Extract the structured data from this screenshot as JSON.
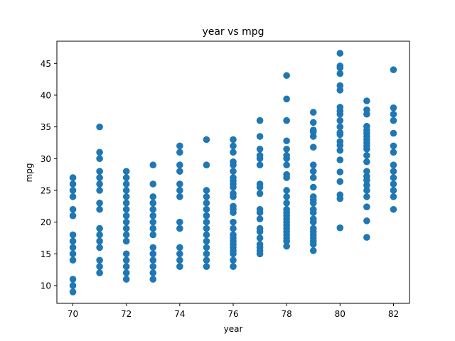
{
  "chart_data": {
    "type": "scatter",
    "title": "year vs mpg",
    "xlabel": "year",
    "ylabel": "mpg",
    "xlim": [
      69.4,
      82.6
    ],
    "ylim": [
      7.2,
      48.5
    ],
    "xticks": [
      70,
      72,
      74,
      76,
      78,
      80,
      82
    ],
    "yticks": [
      10,
      15,
      20,
      25,
      30,
      35,
      40,
      45
    ],
    "grid": false,
    "point_color": "#1f77b4",
    "points": [
      {
        "x": 70,
        "y": 9
      },
      {
        "x": 70,
        "y": 10
      },
      {
        "x": 70,
        "y": 11
      },
      {
        "x": 70,
        "y": 14
      },
      {
        "x": 70,
        "y": 15
      },
      {
        "x": 70,
        "y": 16
      },
      {
        "x": 70,
        "y": 17
      },
      {
        "x": 70,
        "y": 18
      },
      {
        "x": 70,
        "y": 21
      },
      {
        "x": 70,
        "y": 22
      },
      {
        "x": 70,
        "y": 24
      },
      {
        "x": 70,
        "y": 25
      },
      {
        "x": 70,
        "y": 26
      },
      {
        "x": 70,
        "y": 27
      },
      {
        "x": 71,
        "y": 12
      },
      {
        "x": 71,
        "y": 13
      },
      {
        "x": 71,
        "y": 14
      },
      {
        "x": 71,
        "y": 16
      },
      {
        "x": 71,
        "y": 17
      },
      {
        "x": 71,
        "y": 18
      },
      {
        "x": 71,
        "y": 19
      },
      {
        "x": 71,
        "y": 22
      },
      {
        "x": 71,
        "y": 23
      },
      {
        "x": 71,
        "y": 25
      },
      {
        "x": 71,
        "y": 26
      },
      {
        "x": 71,
        "y": 27
      },
      {
        "x": 71,
        "y": 28
      },
      {
        "x": 71,
        "y": 30
      },
      {
        "x": 71,
        "y": 31
      },
      {
        "x": 71,
        "y": 35
      },
      {
        "x": 72,
        "y": 11
      },
      {
        "x": 72,
        "y": 12
      },
      {
        "x": 72,
        "y": 13
      },
      {
        "x": 72,
        "y": 14
      },
      {
        "x": 72,
        "y": 15
      },
      {
        "x": 72,
        "y": 17
      },
      {
        "x": 72,
        "y": 18
      },
      {
        "x": 72,
        "y": 19
      },
      {
        "x": 72,
        "y": 20
      },
      {
        "x": 72,
        "y": 21
      },
      {
        "x": 72,
        "y": 22
      },
      {
        "x": 72,
        "y": 23
      },
      {
        "x": 72,
        "y": 24
      },
      {
        "x": 72,
        "y": 25
      },
      {
        "x": 72,
        "y": 26
      },
      {
        "x": 72,
        "y": 27
      },
      {
        "x": 72,
        "y": 28
      },
      {
        "x": 73,
        "y": 11
      },
      {
        "x": 73,
        "y": 12
      },
      {
        "x": 73,
        "y": 13
      },
      {
        "x": 73,
        "y": 14
      },
      {
        "x": 73,
        "y": 15
      },
      {
        "x": 73,
        "y": 16
      },
      {
        "x": 73,
        "y": 18
      },
      {
        "x": 73,
        "y": 19
      },
      {
        "x": 73,
        "y": 20
      },
      {
        "x": 73,
        "y": 21
      },
      {
        "x": 73,
        "y": 22
      },
      {
        "x": 73,
        "y": 23
      },
      {
        "x": 73,
        "y": 24
      },
      {
        "x": 73,
        "y": 26
      },
      {
        "x": 73,
        "y": 29
      },
      {
        "x": 74,
        "y": 13
      },
      {
        "x": 74,
        "y": 14
      },
      {
        "x": 74,
        "y": 15
      },
      {
        "x": 74,
        "y": 16
      },
      {
        "x": 74,
        "y": 19
      },
      {
        "x": 74,
        "y": 20
      },
      {
        "x": 74,
        "y": 24
      },
      {
        "x": 74,
        "y": 25
      },
      {
        "x": 74,
        "y": 26
      },
      {
        "x": 74,
        "y": 28
      },
      {
        "x": 74,
        "y": 29
      },
      {
        "x": 74,
        "y": 31
      },
      {
        "x": 74,
        "y": 32
      },
      {
        "x": 75,
        "y": 13
      },
      {
        "x": 75,
        "y": 14
      },
      {
        "x": 75,
        "y": 15
      },
      {
        "x": 75,
        "y": 16
      },
      {
        "x": 75,
        "y": 17
      },
      {
        "x": 75,
        "y": 18
      },
      {
        "x": 75,
        "y": 19
      },
      {
        "x": 75,
        "y": 20
      },
      {
        "x": 75,
        "y": 21
      },
      {
        "x": 75,
        "y": 22
      },
      {
        "x": 75,
        "y": 23
      },
      {
        "x": 75,
        "y": 24
      },
      {
        "x": 75,
        "y": 25
      },
      {
        "x": 75,
        "y": 29
      },
      {
        "x": 75,
        "y": 33
      },
      {
        "x": 76,
        "y": 13
      },
      {
        "x": 76,
        "y": 14
      },
      {
        "x": 76,
        "y": 15
      },
      {
        "x": 76,
        "y": 15.5
      },
      {
        "x": 76,
        "y": 16
      },
      {
        "x": 76,
        "y": 16.5
      },
      {
        "x": 76,
        "y": 17
      },
      {
        "x": 76,
        "y": 17.5
      },
      {
        "x": 76,
        "y": 18
      },
      {
        "x": 76,
        "y": 19
      },
      {
        "x": 76,
        "y": 20
      },
      {
        "x": 76,
        "y": 21.5
      },
      {
        "x": 76,
        "y": 22
      },
      {
        "x": 76,
        "y": 22.5
      },
      {
        "x": 76,
        "y": 24
      },
      {
        "x": 76,
        "y": 24.5
      },
      {
        "x": 76,
        "y": 25.5
      },
      {
        "x": 76,
        "y": 26
      },
      {
        "x": 76,
        "y": 26.5
      },
      {
        "x": 76,
        "y": 27
      },
      {
        "x": 76,
        "y": 28
      },
      {
        "x": 76,
        "y": 29
      },
      {
        "x": 76,
        "y": 29.5
      },
      {
        "x": 76,
        "y": 31
      },
      {
        "x": 76,
        "y": 32
      },
      {
        "x": 76,
        "y": 33
      },
      {
        "x": 77,
        "y": 15
      },
      {
        "x": 77,
        "y": 15.5
      },
      {
        "x": 77,
        "y": 16
      },
      {
        "x": 77,
        "y": 16.5
      },
      {
        "x": 77,
        "y": 17.5
      },
      {
        "x": 77,
        "y": 18.5
      },
      {
        "x": 77,
        "y": 19
      },
      {
        "x": 77,
        "y": 20.5
      },
      {
        "x": 77,
        "y": 21.5
      },
      {
        "x": 77,
        "y": 22
      },
      {
        "x": 77,
        "y": 24.5
      },
      {
        "x": 77,
        "y": 25.5
      },
      {
        "x": 77,
        "y": 26
      },
      {
        "x": 77,
        "y": 29
      },
      {
        "x": 77,
        "y": 30
      },
      {
        "x": 77,
        "y": 30.5
      },
      {
        "x": 77,
        "y": 31.5
      },
      {
        "x": 77,
        "y": 33.5
      },
      {
        "x": 77,
        "y": 36
      },
      {
        "x": 78,
        "y": 16.2
      },
      {
        "x": 78,
        "y": 17
      },
      {
        "x": 78,
        "y": 17.5
      },
      {
        "x": 78,
        "y": 18
      },
      {
        "x": 78,
        "y": 18.5
      },
      {
        "x": 78,
        "y": 19
      },
      {
        "x": 78,
        "y": 19.5
      },
      {
        "x": 78,
        "y": 20
      },
      {
        "x": 78,
        "y": 20.5
      },
      {
        "x": 78,
        "y": 21
      },
      {
        "x": 78,
        "y": 21.5
      },
      {
        "x": 78,
        "y": 22
      },
      {
        "x": 78,
        "y": 23
      },
      {
        "x": 78,
        "y": 24
      },
      {
        "x": 78,
        "y": 25
      },
      {
        "x": 78,
        "y": 27
      },
      {
        "x": 78,
        "y": 27.5
      },
      {
        "x": 78,
        "y": 29
      },
      {
        "x": 78,
        "y": 30
      },
      {
        "x": 78,
        "y": 30.5
      },
      {
        "x": 78,
        "y": 31.5
      },
      {
        "x": 78,
        "y": 32.8
      },
      {
        "x": 78,
        "y": 36
      },
      {
        "x": 78,
        "y": 39.4
      },
      {
        "x": 78,
        "y": 43.1
      },
      {
        "x": 79,
        "y": 15.5
      },
      {
        "x": 79,
        "y": 16.5
      },
      {
        "x": 79,
        "y": 17
      },
      {
        "x": 79,
        "y": 17.5
      },
      {
        "x": 79,
        "y": 18
      },
      {
        "x": 79,
        "y": 18.5
      },
      {
        "x": 79,
        "y": 19
      },
      {
        "x": 79,
        "y": 20
      },
      {
        "x": 79,
        "y": 20.5
      },
      {
        "x": 79,
        "y": 21.5
      },
      {
        "x": 79,
        "y": 22
      },
      {
        "x": 79,
        "y": 23
      },
      {
        "x": 79,
        "y": 23.5
      },
      {
        "x": 79,
        "y": 24
      },
      {
        "x": 79,
        "y": 25.5
      },
      {
        "x": 79,
        "y": 27
      },
      {
        "x": 79,
        "y": 28
      },
      {
        "x": 79,
        "y": 29
      },
      {
        "x": 79,
        "y": 31.8
      },
      {
        "x": 79,
        "y": 33.5
      },
      {
        "x": 79,
        "y": 34.2
      },
      {
        "x": 79,
        "y": 34.5
      },
      {
        "x": 79,
        "y": 35.7
      },
      {
        "x": 79,
        "y": 37.3
      },
      {
        "x": 80,
        "y": 19.1
      },
      {
        "x": 80,
        "y": 23.7
      },
      {
        "x": 80,
        "y": 24.3
      },
      {
        "x": 80,
        "y": 26.4
      },
      {
        "x": 80,
        "y": 27.9
      },
      {
        "x": 80,
        "y": 29.8
      },
      {
        "x": 80,
        "y": 31.3
      },
      {
        "x": 80,
        "y": 32.1
      },
      {
        "x": 80,
        "y": 32.7
      },
      {
        "x": 80,
        "y": 33.8
      },
      {
        "x": 80,
        "y": 34.1
      },
      {
        "x": 80,
        "y": 35
      },
      {
        "x": 80,
        "y": 36
      },
      {
        "x": 80,
        "y": 37
      },
      {
        "x": 80,
        "y": 37.5
      },
      {
        "x": 80,
        "y": 38.1
      },
      {
        "x": 80,
        "y": 40.8
      },
      {
        "x": 80,
        "y": 41.5
      },
      {
        "x": 80,
        "y": 43.4
      },
      {
        "x": 80,
        "y": 44.3
      },
      {
        "x": 80,
        "y": 44.6
      },
      {
        "x": 80,
        "y": 46.6
      },
      {
        "x": 81,
        "y": 17.6
      },
      {
        "x": 81,
        "y": 20.2
      },
      {
        "x": 81,
        "y": 22.4
      },
      {
        "x": 81,
        "y": 24
      },
      {
        "x": 81,
        "y": 25
      },
      {
        "x": 81,
        "y": 25.8
      },
      {
        "x": 81,
        "y": 26.6
      },
      {
        "x": 81,
        "y": 27.2
      },
      {
        "x": 81,
        "y": 28
      },
      {
        "x": 81,
        "y": 29.5
      },
      {
        "x": 81,
        "y": 30.5
      },
      {
        "x": 81,
        "y": 31.5
      },
      {
        "x": 81,
        "y": 32
      },
      {
        "x": 81,
        "y": 32.5
      },
      {
        "x": 81,
        "y": 33
      },
      {
        "x": 81,
        "y": 33.5
      },
      {
        "x": 81,
        "y": 34
      },
      {
        "x": 81,
        "y": 34.5
      },
      {
        "x": 81,
        "y": 35.1
      },
      {
        "x": 81,
        "y": 37
      },
      {
        "x": 81,
        "y": 37.7
      },
      {
        "x": 81,
        "y": 39.1
      },
      {
        "x": 82,
        "y": 22
      },
      {
        "x": 82,
        "y": 24
      },
      {
        "x": 82,
        "y": 25
      },
      {
        "x": 82,
        "y": 26
      },
      {
        "x": 82,
        "y": 27
      },
      {
        "x": 82,
        "y": 28
      },
      {
        "x": 82,
        "y": 29
      },
      {
        "x": 82,
        "y": 31
      },
      {
        "x": 82,
        "y": 32
      },
      {
        "x": 82,
        "y": 34
      },
      {
        "x": 82,
        "y": 36
      },
      {
        "x": 82,
        "y": 37
      },
      {
        "x": 82,
        "y": 38
      },
      {
        "x": 82,
        "y": 44
      }
    ]
  }
}
